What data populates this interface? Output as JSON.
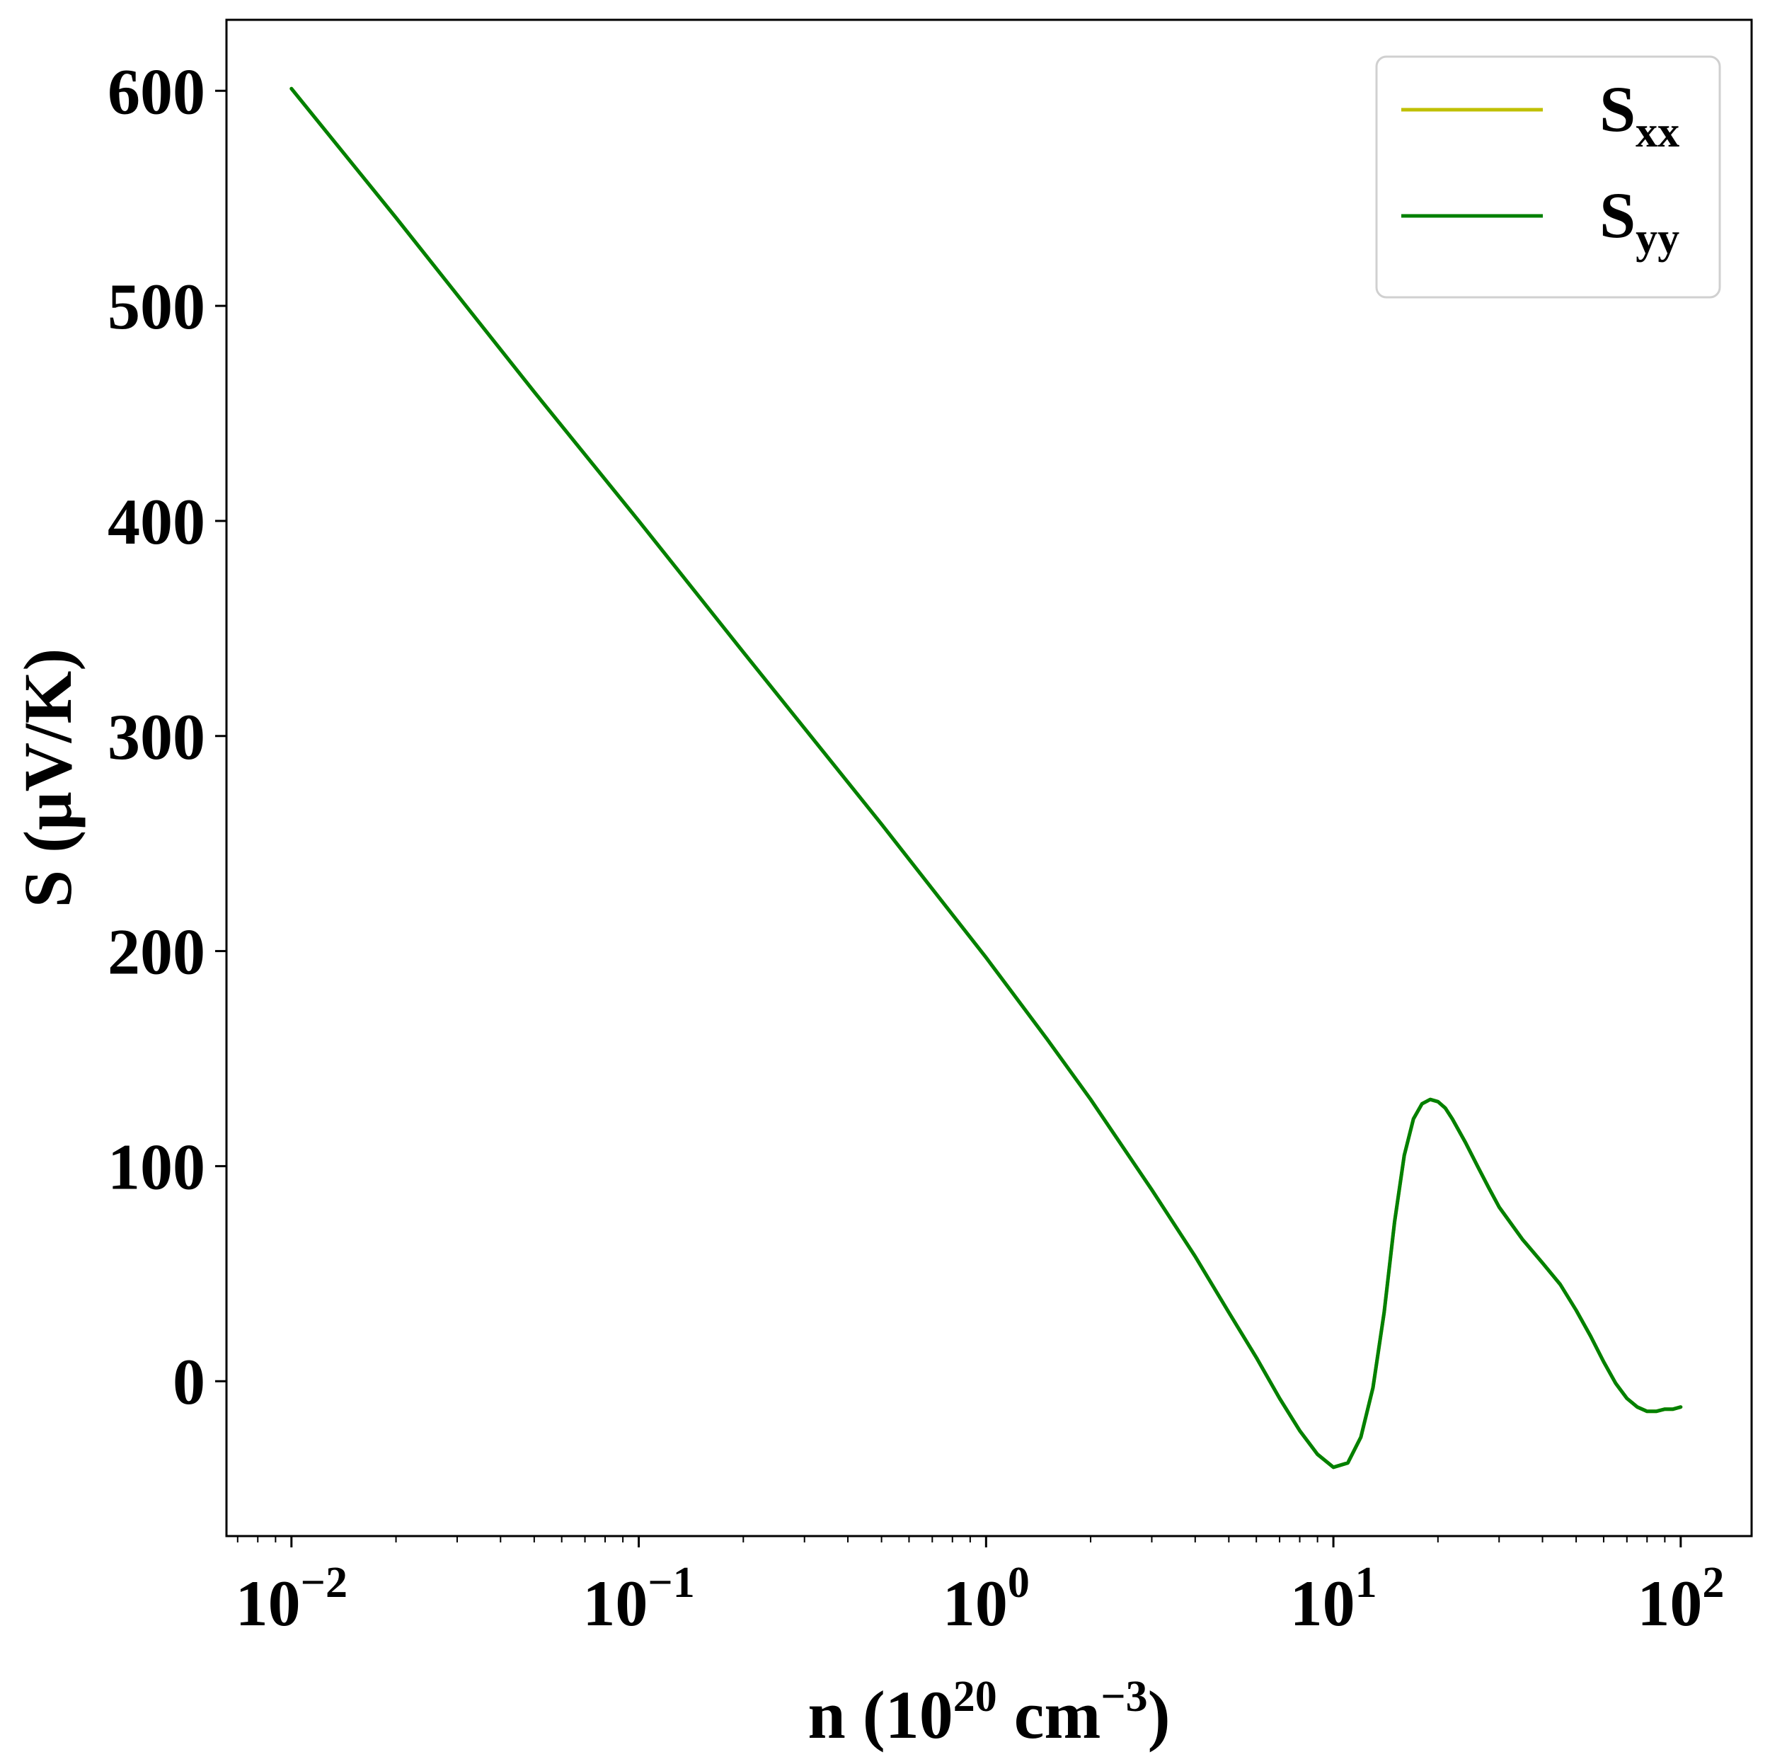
{
  "chart_data": {
    "type": "line",
    "xlabel": {
      "base": "n (10",
      "exp1": "20",
      "mid": " cm",
      "exp2": "−3",
      "end": ")"
    },
    "ylabel": "S (μV/K)",
    "x_scale": "log",
    "xlim": [
      0.0065,
      160
    ],
    "ylim": [
      -72,
      633
    ],
    "x_ticks": [
      {
        "value": 0.01,
        "base": "10",
        "exp": "−2"
      },
      {
        "value": 0.1,
        "base": "10",
        "exp": "−1"
      },
      {
        "value": 1,
        "base": "10",
        "exp": "0"
      },
      {
        "value": 10,
        "base": "10",
        "exp": "1"
      },
      {
        "value": 100,
        "base": "10",
        "exp": "2"
      }
    ],
    "y_ticks": [
      {
        "value": 0,
        "label": "0"
      },
      {
        "value": 100,
        "label": "100"
      },
      {
        "value": 200,
        "label": "200"
      },
      {
        "value": 300,
        "label": "300"
      },
      {
        "value": 400,
        "label": "400"
      },
      {
        "value": 500,
        "label": "500"
      },
      {
        "value": 600,
        "label": "600"
      }
    ],
    "grid": false,
    "legend_position": "top-right",
    "series": [
      {
        "name": {
          "base": "S",
          "sub": "xx"
        },
        "color": "#bfbf00",
        "x": [
          0.01,
          0.02,
          0.05,
          0.1,
          0.2,
          0.5,
          1,
          1.5,
          2,
          3,
          4,
          5,
          6,
          7,
          8,
          9,
          10,
          11,
          12,
          13,
          14,
          15,
          16,
          17,
          18,
          19,
          20,
          21,
          22,
          24,
          26,
          28,
          30,
          35,
          40,
          45,
          50,
          55,
          60,
          65,
          70,
          75,
          80,
          85,
          90,
          95,
          100
        ],
        "y": [
          601,
          541,
          460,
          400,
          339,
          259,
          197,
          159,
          131,
          89,
          58,
          32,
          11,
          -8,
          -23,
          -34,
          -40,
          -38,
          -26,
          -3,
          32,
          74,
          105,
          122,
          129,
          131,
          130,
          127,
          122,
          111,
          100,
          90,
          81,
          66,
          55,
          45,
          33,
          21,
          9,
          -1,
          -8,
          -12,
          -14,
          -14,
          -13,
          -13,
          -12
        ]
      },
      {
        "name": {
          "base": "S",
          "sub": "yy"
        },
        "color": "#008000",
        "x": [
          0.01,
          0.02,
          0.05,
          0.1,
          0.2,
          0.5,
          1,
          1.5,
          2,
          3,
          4,
          5,
          6,
          7,
          8,
          9,
          10,
          11,
          12,
          13,
          14,
          15,
          16,
          17,
          18,
          19,
          20,
          21,
          22,
          24,
          26,
          28,
          30,
          35,
          40,
          45,
          50,
          55,
          60,
          65,
          70,
          75,
          80,
          85,
          90,
          95,
          100
        ],
        "y": [
          601,
          541,
          460,
          400,
          339,
          259,
          197,
          159,
          131,
          89,
          58,
          32,
          11,
          -8,
          -23,
          -34,
          -40,
          -38,
          -26,
          -3,
          32,
          74,
          105,
          122,
          129,
          131,
          130,
          127,
          122,
          111,
          100,
          90,
          81,
          66,
          55,
          45,
          33,
          21,
          9,
          -1,
          -8,
          -12,
          -14,
          -14,
          -13,
          -13,
          -12
        ]
      }
    ]
  }
}
